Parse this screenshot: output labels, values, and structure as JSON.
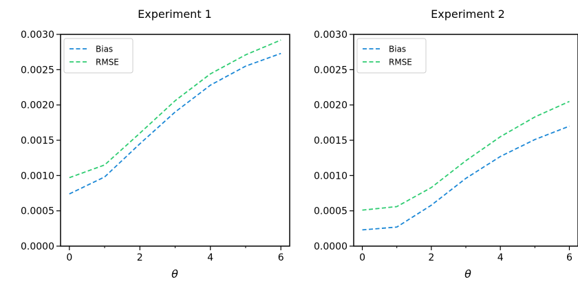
{
  "chart_data": [
    {
      "type": "line",
      "title": "Experiment 1",
      "xlabel": "θ",
      "ylabel": "",
      "x": [
        0,
        1,
        2,
        3,
        4,
        5,
        6
      ],
      "xlim": [
        -0.25,
        6.25
      ],
      "ylim": [
        0,
        0.003
      ],
      "xticks": [
        "0",
        "2",
        "4",
        "6"
      ],
      "yticks": [
        "0.0000",
        "0.0005",
        "0.0010",
        "0.0015",
        "0.0020",
        "0.0025",
        "0.0030"
      ],
      "grid": false,
      "legend": "top-left",
      "series": [
        {
          "name": "Bias",
          "color": "#1a87d6",
          "style": "dashed",
          "values": [
            0.00074,
            0.00098,
            0.00145,
            0.0019,
            0.00228,
            0.00255,
            0.00273
          ]
        },
        {
          "name": "RMSE",
          "color": "#2ecc71",
          "style": "dashed",
          "values": [
            0.00097,
            0.00115,
            0.0016,
            0.00206,
            0.00244,
            0.00271,
            0.00292
          ]
        }
      ]
    },
    {
      "type": "line",
      "title": "Experiment 2",
      "xlabel": "θ",
      "ylabel": "",
      "x": [
        0,
        1,
        2,
        3,
        4,
        5,
        6
      ],
      "xlim": [
        -0.25,
        6.25
      ],
      "ylim": [
        0,
        0.003
      ],
      "xticks": [
        "0",
        "2",
        "4",
        "6"
      ],
      "yticks": [
        "0.0000",
        "0.0005",
        "0.0010",
        "0.0015",
        "0.0020",
        "0.0025",
        "0.0030"
      ],
      "grid": false,
      "legend": "top-left",
      "series": [
        {
          "name": "Bias",
          "color": "#1a87d6",
          "style": "dashed",
          "values": [
            0.00023,
            0.00027,
            0.00058,
            0.00096,
            0.00127,
            0.00151,
            0.0017
          ]
        },
        {
          "name": "RMSE",
          "color": "#2ecc71",
          "style": "dashed",
          "values": [
            0.00051,
            0.00056,
            0.00083,
            0.00121,
            0.00155,
            0.00183,
            0.00205
          ]
        }
      ]
    }
  ]
}
